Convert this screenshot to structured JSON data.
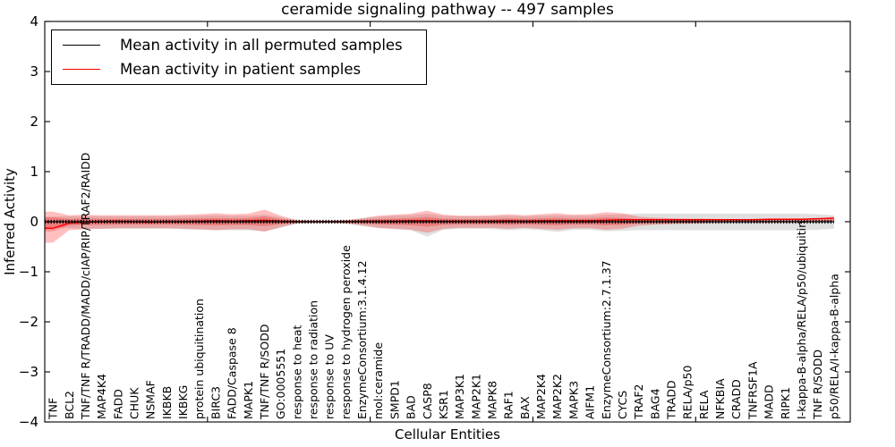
{
  "title": "ceramide signaling pathway -- 497 samples",
  "legend": [
    {
      "label": "Mean activity in all permuted samples",
      "color": "#000000"
    },
    {
      "label": "Mean activity in patient samples",
      "color": "#ff0000"
    }
  ],
  "colors": {
    "permuted_line": "#000000",
    "patient_line": "#ff0000",
    "permuted_band": "#000000",
    "patient_band": "#ff0000",
    "axis": "#000000",
    "background": "#ffffff"
  },
  "chart_data": {
    "type": "line",
    "title": "ceramide signaling pathway -- 497 samples",
    "xlabel": "Cellular Entities",
    "ylabel": "Inferred Activity",
    "ylim": [
      -4,
      4
    ],
    "yticks": [
      4,
      3,
      2,
      1,
      0,
      -1,
      -2,
      -3,
      -4
    ],
    "ytick_labels": [
      "4",
      "3",
      "2",
      "1",
      "0",
      "−1",
      "−2",
      "−3",
      "−4"
    ],
    "xlim": [
      0,
      49.5
    ],
    "xticks_major": [
      10,
      20,
      30,
      40
    ],
    "grid": false,
    "legend_position": "upper left",
    "categories": [
      "TNF",
      "BCL2",
      "TNF/TNF R/TRADD/MADD/cIAP/RIP/TRAF2/RAIDD",
      "MAP4K4",
      "FADD",
      "CHUK",
      "NSMAF",
      "IKBKB",
      "IKBKG",
      "protein ubiquitination",
      "BIRC3",
      "FADD/Caspase 8",
      "MAPK1",
      "TNF/TNF R/SODD",
      "GO:0005551",
      "response to heat",
      "response to radiation",
      "response to UV",
      "response to hydrogen peroxide",
      "EnzymeConsortium:3.1.4.12",
      "mol:ceramide",
      "SMPD1",
      "BAD",
      "CASP8",
      "KSR1",
      "MAP3K1",
      "MAP2K1",
      "MAPK8",
      "RAF1",
      "BAX",
      "MAP2K4",
      "MAP2K2",
      "MAPK3",
      "AIFM1",
      "EnzymeConsortium:2.7.1.37",
      "CYCS",
      "TRAF2",
      "BAG4",
      "TRADD",
      "RELA/p50",
      "RELA",
      "NFKBIA",
      "CRADD",
      "TNFRSF1A",
      "MADD",
      "RIPK1",
      "I-kappa-B-alpha/RELA/p50/ubiquitin",
      "TNF R/SODD",
      "p50/RELA/I-kappa-B-alpha"
    ],
    "series": [
      {
        "name": "Mean activity in all permuted samples",
        "color": "#000000",
        "band_alpha": 0.12,
        "values": [
          0,
          0,
          0,
          0,
          0,
          0,
          0,
          0,
          0,
          0,
          0,
          0,
          0,
          0,
          0,
          0,
          0,
          0,
          0,
          0,
          0,
          0,
          0,
          0,
          0,
          0,
          0,
          0,
          0,
          0,
          0,
          0,
          0,
          0,
          0,
          0,
          0,
          0,
          0,
          0,
          0,
          0,
          0,
          0,
          0,
          0,
          0,
          0,
          0
        ],
        "band_upper": [
          0.1,
          0.11,
          0.11,
          0.11,
          0.11,
          0.11,
          0.11,
          0.11,
          0.11,
          0.12,
          0.13,
          0.12,
          0.12,
          0.14,
          0.09,
          0.03,
          0.02,
          0.02,
          0.03,
          0.07,
          0.1,
          0.12,
          0.13,
          0.16,
          0.12,
          0.11,
          0.11,
          0.11,
          0.12,
          0.11,
          0.12,
          0.13,
          0.12,
          0.12,
          0.14,
          0.15,
          0.16,
          0.16,
          0.16,
          0.16,
          0.16,
          0.16,
          0.16,
          0.16,
          0.16,
          0.16,
          0.16,
          0.15,
          0.13
        ],
        "band_lower": [
          -0.12,
          -0.13,
          -0.14,
          -0.14,
          -0.14,
          -0.14,
          -0.14,
          -0.14,
          -0.15,
          -0.16,
          -0.17,
          -0.17,
          -0.17,
          -0.19,
          -0.12,
          -0.04,
          -0.03,
          -0.03,
          -0.04,
          -0.09,
          -0.13,
          -0.15,
          -0.17,
          -0.3,
          -0.16,
          -0.14,
          -0.14,
          -0.15,
          -0.17,
          -0.15,
          -0.17,
          -0.2,
          -0.16,
          -0.16,
          -0.19,
          -0.18,
          -0.17,
          -0.17,
          -0.17,
          -0.17,
          -0.17,
          -0.17,
          -0.17,
          -0.17,
          -0.17,
          -0.17,
          -0.17,
          -0.16,
          -0.14
        ]
      },
      {
        "name": "Mean activity in patient samples",
        "color": "#ff0000",
        "band_alpha": 0.25,
        "values": [
          -0.13,
          -0.03,
          -0.01,
          0,
          0.01,
          0,
          -0.01,
          0,
          0,
          0.01,
          0.02,
          0.01,
          0.02,
          0.03,
          0.01,
          0,
          0,
          0,
          0,
          0.01,
          0.01,
          0.01,
          0.02,
          0.02,
          0.01,
          0.01,
          0.01,
          0.01,
          0.02,
          0.01,
          0.02,
          0.02,
          0.02,
          0.02,
          0.03,
          0.04,
          0.04,
          0.04,
          0.04,
          0.04,
          0.04,
          0.04,
          0.04,
          0.04,
          0.05,
          0.05,
          0.05,
          0.06,
          0.07
        ],
        "band_upper": [
          0.2,
          0.13,
          0.14,
          0.13,
          0.13,
          0.13,
          0.13,
          0.13,
          0.14,
          0.15,
          0.17,
          0.15,
          0.16,
          0.24,
          0.12,
          0.03,
          0.02,
          0.02,
          0.03,
          0.07,
          0.12,
          0.14,
          0.16,
          0.22,
          0.14,
          0.12,
          0.12,
          0.13,
          0.15,
          0.13,
          0.15,
          0.17,
          0.14,
          0.15,
          0.19,
          0.17,
          0.1,
          0.08,
          0.07,
          0.06,
          0.06,
          0.05,
          0.05,
          0.05,
          0.05,
          0.05,
          0.06,
          0.06,
          0.1
        ],
        "band_lower": [
          -0.42,
          -0.17,
          -0.15,
          -0.14,
          -0.13,
          -0.13,
          -0.13,
          -0.13,
          -0.14,
          -0.15,
          -0.17,
          -0.15,
          -0.15,
          -0.2,
          -0.11,
          -0.03,
          -0.02,
          -0.02,
          -0.03,
          -0.07,
          -0.12,
          -0.14,
          -0.16,
          -0.22,
          -0.14,
          -0.12,
          -0.12,
          -0.12,
          -0.14,
          -0.12,
          -0.14,
          -0.16,
          -0.13,
          -0.13,
          -0.16,
          -0.14,
          -0.08,
          -0.06,
          -0.05,
          -0.04,
          -0.03,
          -0.02,
          -0.02,
          -0.02,
          -0.02,
          -0.02,
          -0.02,
          -0.01,
          0.03
        ]
      }
    ]
  }
}
